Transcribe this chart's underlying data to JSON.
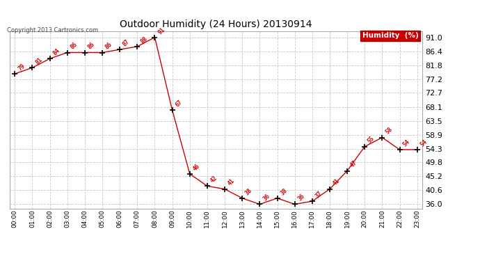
{
  "title": "Outdoor Humidity (24 Hours) 20130914",
  "copyright_text": "Copyright 2013 Cartronics.com",
  "legend_label": "Humidity  (%)",
  "hours": [
    0,
    1,
    2,
    3,
    4,
    5,
    6,
    7,
    8,
    9,
    10,
    11,
    12,
    13,
    14,
    15,
    16,
    17,
    18,
    19,
    20,
    21,
    22,
    23
  ],
  "values": [
    79,
    81,
    84,
    86,
    86,
    86,
    87,
    88,
    91,
    67,
    46,
    42,
    41,
    38,
    36,
    38,
    36,
    37,
    41,
    47,
    55,
    58,
    54,
    54
  ],
  "x_labels": [
    "00:00",
    "01:00",
    "02:00",
    "03:00",
    "04:00",
    "05:00",
    "06:00",
    "07:00",
    "08:00",
    "09:00",
    "10:00",
    "11:00",
    "12:00",
    "13:00",
    "14:00",
    "15:00",
    "16:00",
    "17:00",
    "18:00",
    "19:00",
    "20:00",
    "21:00",
    "22:00",
    "23:00"
  ],
  "y_ticks": [
    36.0,
    40.6,
    45.2,
    49.8,
    54.3,
    58.9,
    63.5,
    68.1,
    72.7,
    77.2,
    81.8,
    86.4,
    91.0
  ],
  "ylim_min": 34.5,
  "ylim_max": 93.0,
  "line_color": "#cc0000",
  "marker_color": "#000000",
  "label_color": "#cc0000",
  "bg_color": "#ffffff",
  "grid_color": "#c8c8c8",
  "title_color": "#000000",
  "legend_bg": "#cc0000",
  "legend_text_color": "#ffffff"
}
